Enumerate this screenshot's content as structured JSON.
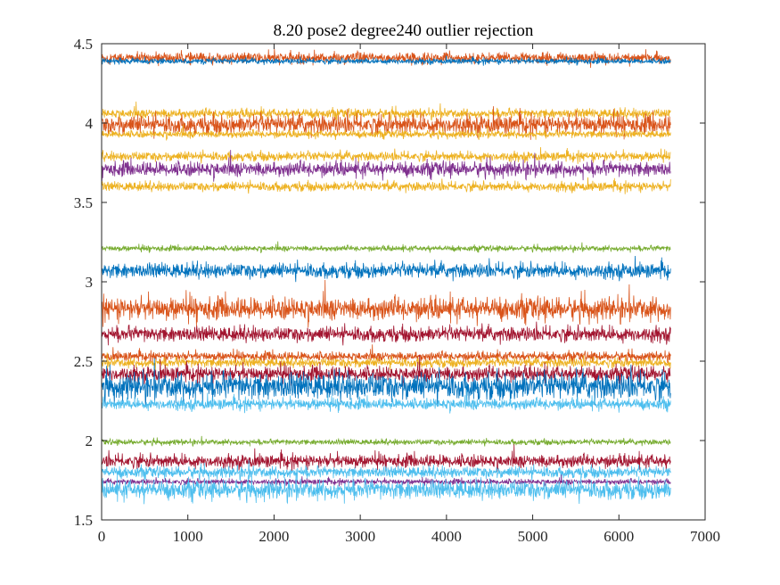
{
  "chart_data": {
    "type": "line",
    "title": "8.20 pose2  degree240 outlier rejection",
    "xlabel": "",
    "ylabel": "",
    "xlim": [
      0,
      7000
    ],
    "ylim": [
      1.5,
      4.5
    ],
    "x_ticks": [
      0,
      1000,
      2000,
      3000,
      4000,
      5000,
      6000,
      7000
    ],
    "y_ticks": [
      1.5,
      2,
      2.5,
      3,
      3.5,
      4,
      4.5
    ],
    "x_tick_labels": [
      "0",
      "1000",
      "2000",
      "3000",
      "4000",
      "5000",
      "6000",
      "7000"
    ],
    "y_tick_labels": [
      "1.5",
      "2",
      "2.5",
      "3",
      "3.5",
      "4",
      "4.5"
    ],
    "grid": false,
    "legend": "none",
    "sample_count": 6600,
    "series": [
      {
        "color": "#D95319",
        "center": 4.41,
        "noise": 0.03
      },
      {
        "color": "#0072BD",
        "center": 4.39,
        "noise": 0.015
      },
      {
        "color": "#EDB120",
        "center": 4.06,
        "noise": 0.025
      },
      {
        "color": "#D95319",
        "center": 3.99,
        "noise": 0.05
      },
      {
        "color": "#EDB120",
        "center": 3.93,
        "noise": 0.02
      },
      {
        "color": "#EDB120",
        "center": 3.79,
        "noise": 0.025
      },
      {
        "color": "#7E2F8E",
        "center": 3.71,
        "noise": 0.04
      },
      {
        "color": "#EDB120",
        "center": 3.6,
        "noise": 0.025
      },
      {
        "color": "#77AC30",
        "center": 3.21,
        "noise": 0.015
      },
      {
        "color": "#0072BD",
        "center": 3.07,
        "noise": 0.04
      },
      {
        "color": "#D95319",
        "center": 2.83,
        "noise": 0.06
      },
      {
        "color": "#A2142F",
        "center": 2.67,
        "noise": 0.04
      },
      {
        "color": "#D95319",
        "center": 2.53,
        "noise": 0.025
      },
      {
        "color": "#EDB120",
        "center": 2.49,
        "noise": 0.025
      },
      {
        "color": "#A2142F",
        "center": 2.42,
        "noise": 0.04
      },
      {
        "color": "#0072BD",
        "center": 2.34,
        "noise": 0.07
      },
      {
        "color": "#4DBEEE",
        "center": 2.23,
        "noise": 0.03
      },
      {
        "color": "#77AC30",
        "center": 1.99,
        "noise": 0.015
      },
      {
        "color": "#A2142F",
        "center": 1.87,
        "noise": 0.035
      },
      {
        "color": "#4DBEEE",
        "center": 1.8,
        "noise": 0.03
      },
      {
        "color": "#7E2F8E",
        "center": 1.74,
        "noise": 0.015
      },
      {
        "color": "#4DBEEE",
        "center": 1.69,
        "noise": 0.05
      }
    ]
  }
}
